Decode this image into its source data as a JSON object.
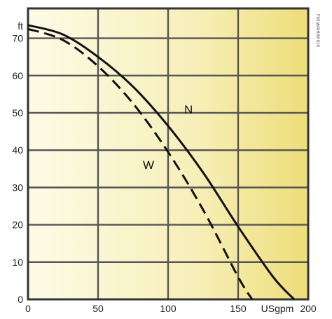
{
  "chart_data": {
    "type": "line",
    "y_unit_label": "ft",
    "x_unit_label": "USgpm",
    "xlim": [
      0,
      200
    ],
    "ylim": [
      0,
      75
    ],
    "x_ticks": [
      "0",
      "50",
      "100",
      "150",
      "200"
    ],
    "y_ticks": [
      "0",
      "10",
      "20",
      "30",
      "40",
      "50",
      "60",
      "70"
    ],
    "grid": true,
    "series": [
      {
        "name": "N",
        "style": "solid",
        "x": [
          0,
          25,
          50,
          75,
          100,
          125,
          150,
          175,
          190
        ],
        "y": [
          73.5,
          71,
          65,
          57,
          46.5,
          34,
          19.5,
          6,
          0
        ]
      },
      {
        "name": "W",
        "style": "dashed",
        "x": [
          0,
          25,
          50,
          75,
          100,
          125,
          150,
          160
        ],
        "y": [
          72.5,
          69.5,
          62.5,
          52.5,
          39.5,
          24,
          6,
          0
        ]
      }
    ],
    "side_note": "F03 WAHUM 019"
  }
}
